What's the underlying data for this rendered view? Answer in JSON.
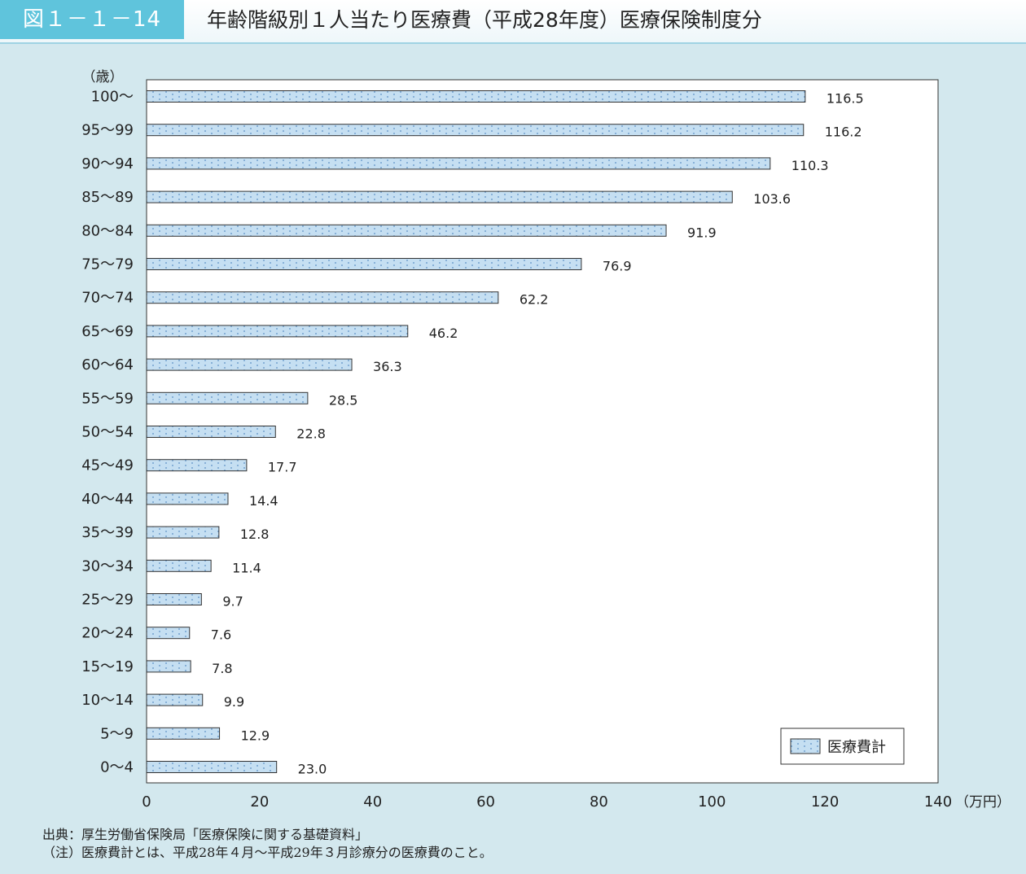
{
  "header": {
    "figure_label": "図１－１－14",
    "title": "年齢階級別１人当たり医療費（平成28年度）医療保険制度分"
  },
  "chart_data": {
    "type": "bar",
    "orientation": "horizontal",
    "categories": [
      "100～",
      "95～99",
      "90～94",
      "85～89",
      "80～84",
      "75～79",
      "70～74",
      "65～69",
      "60～64",
      "55～59",
      "50～54",
      "45～49",
      "40～44",
      "35～39",
      "30～34",
      "25～29",
      "20～24",
      "15～19",
      "10～14",
      "5～9",
      "0～4"
    ],
    "series": [
      {
        "name": "医療費計",
        "values": [
          116.5,
          116.2,
          110.3,
          103.6,
          91.9,
          76.9,
          62.2,
          46.2,
          36.3,
          28.5,
          22.8,
          17.7,
          14.4,
          12.8,
          11.4,
          9.7,
          7.6,
          7.8,
          9.9,
          12.9,
          23.0
        ],
        "color": "#c5dff2"
      }
    ],
    "data_labels": [
      "116.5",
      "116.2",
      "110.3",
      "103.6",
      "91.9",
      "76.9",
      "62.2",
      "46.2",
      "36.3",
      "28.5",
      "22.8",
      "17.7",
      "14.4",
      "12.8",
      "11.4",
      "9.7",
      "7.6",
      "7.8",
      "9.9",
      "12.9",
      "23.0"
    ],
    "y_unit_label": "（歳）",
    "x_unit_label": "（万円）",
    "x_ticks": [
      0,
      20,
      40,
      60,
      80,
      100,
      120,
      140
    ],
    "xlim": [
      0,
      140
    ],
    "legend_position": "bottom-right",
    "grid": false
  },
  "footer": {
    "source": "出典：厚生労働省保険局「医療保険に関する基礎資料」",
    "note": "（注）医療費計とは、平成28年４月～平成29年３月診療分の医療費のこと。"
  },
  "colors": {
    "background": "#d3e8ee",
    "header_accent": "#5fc4dc",
    "bar_fill": "#c5dff2",
    "bar_dot": "#5b8fc4"
  }
}
